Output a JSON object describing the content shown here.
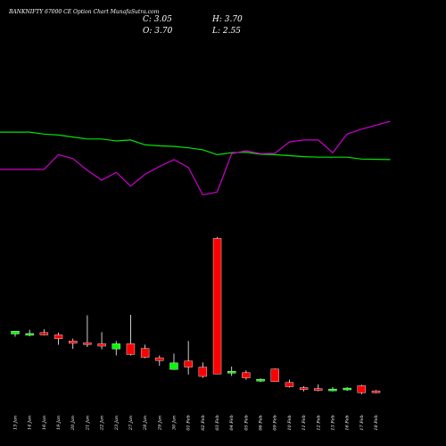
{
  "chart_data": {
    "type": "candlestick",
    "title": "BANKNIFTY 67000  CE Option  Chart MunafaSutra.com",
    "ohlc": {
      "c_label": "C: 3.05",
      "h_label": "H: 3.70",
      "o_label": "O: 3.70",
      "l_label": "L: 2.55"
    },
    "categories": [
      "13 Jan",
      "14 Jan",
      "16 Jan",
      "19 Jan",
      "20 Jan",
      "21 Jan",
      "22 Jan",
      "23 Jan",
      "27 Jan",
      "28 Jan",
      "29 Jan",
      "30 Jan",
      "01 Feb",
      "02 Feb",
      "03 Feb",
      "04 Feb",
      "05 Feb",
      "06 Feb",
      "09 Feb",
      "10 Feb",
      "11 Feb",
      "12 Feb",
      "13 Feb",
      "16 Feb",
      "17 Feb",
      "18 Feb"
    ],
    "candles": [
      {
        "o": 32.5,
        "h": 34.0,
        "l": 29.5,
        "c": 35.5,
        "color": "green"
      },
      {
        "o": 32.0,
        "h": 37.0,
        "l": 30.0,
        "c": 33.0,
        "color": "green"
      },
      {
        "o": 34.0,
        "h": 37.5,
        "l": 31.0,
        "c": 31.5,
        "color": "red"
      },
      {
        "o": 31.5,
        "h": 34.0,
        "l": 21.0,
        "c": 27.5,
        "color": "red"
      },
      {
        "o": 25.0,
        "h": 27.5,
        "l": 16.5,
        "c": 22.5,
        "color": "red"
      },
      {
        "o": 23.0,
        "h": 52.5,
        "l": 18.5,
        "c": 22.0,
        "color": "red"
      },
      {
        "o": 22.0,
        "h": 34.5,
        "l": 16.0,
        "c": 19.5,
        "color": "red"
      },
      {
        "o": 16.5,
        "h": 25.0,
        "l": 9.5,
        "c": 22.0,
        "color": "green"
      },
      {
        "o": 22.0,
        "h": 53.0,
        "l": 9.5,
        "c": 10.5,
        "color": "red"
      },
      {
        "o": 17.0,
        "h": 21.0,
        "l": 6.5,
        "c": 7.5,
        "color": "red"
      },
      {
        "o": 7.0,
        "h": 9.5,
        "l": -1.5,
        "c": 4.0,
        "color": "red"
      },
      {
        "o": -5.5,
        "h": 11.5,
        "l": -6.0,
        "c": 1.5,
        "color": "green"
      },
      {
        "o": 3.5,
        "h": 25.0,
        "l": -11.0,
        "c": -3.0,
        "color": "red"
      },
      {
        "o": -3.0,
        "h": 2.0,
        "l": -14.5,
        "c": -13.0,
        "color": "red"
      },
      {
        "o": 135.0,
        "h": 136.5,
        "l": -9.0,
        "c": -10.5,
        "color": "red"
      },
      {
        "o": -9.0,
        "h": -2.5,
        "l": -12.5,
        "c": -7.5,
        "color": "green"
      },
      {
        "o": -9.0,
        "h": -6.5,
        "l": -16.5,
        "c": -14.5,
        "color": "red"
      },
      {
        "o": -18.0,
        "h": -15.0,
        "l": -19.0,
        "c": -16.0,
        "color": "green"
      },
      {
        "o": -5.0,
        "h": -4.5,
        "l": -18.5,
        "c": -18.5,
        "color": "red"
      },
      {
        "o": -19.5,
        "h": -16.5,
        "l": -25.0,
        "c": -24.0,
        "color": "red"
      },
      {
        "o": -25.0,
        "h": -23.5,
        "l": -29.0,
        "c": -27.0,
        "color": "red"
      },
      {
        "o": -26.0,
        "h": -21.5,
        "l": -29.0,
        "c": -28.0,
        "color": "red"
      },
      {
        "o": -28.0,
        "h": -24.5,
        "l": -29.0,
        "c": -26.5,
        "color": "green"
      },
      {
        "o": -27.0,
        "h": -24.5,
        "l": -28.5,
        "c": -25.5,
        "color": "green"
      },
      {
        "o": -23.0,
        "h": -22.0,
        "l": -32.0,
        "c": -30.5,
        "color": "red"
      },
      {
        "o": -28.5,
        "h": -27.5,
        "l": -31.0,
        "c": -30.5,
        "color": "red"
      }
    ],
    "price_range": [
      -35,
      140
    ],
    "series": [
      {
        "color": "#00e600",
        "values": [
          19,
          19,
          17,
          16,
          14,
          12,
          12,
          10,
          11,
          6,
          5,
          4.5,
          3,
          1,
          -4,
          -2,
          -1.5,
          -3.5,
          -4,
          -5,
          -6,
          -6.5,
          -6.5,
          -6.5,
          -8.5,
          -9
        ]
      },
      {
        "color": "#cc00cc",
        "values": [
          -19,
          -19,
          -19,
          -4,
          -8,
          -20,
          -30,
          -22,
          -36,
          -24,
          -16,
          -9,
          -17,
          -45,
          -42,
          -3,
          0,
          -3,
          -2.5,
          9,
          11,
          11,
          -2,
          17,
          22,
          30
        ]
      }
    ],
    "indicator_range": [
      -60,
      40
    ]
  }
}
